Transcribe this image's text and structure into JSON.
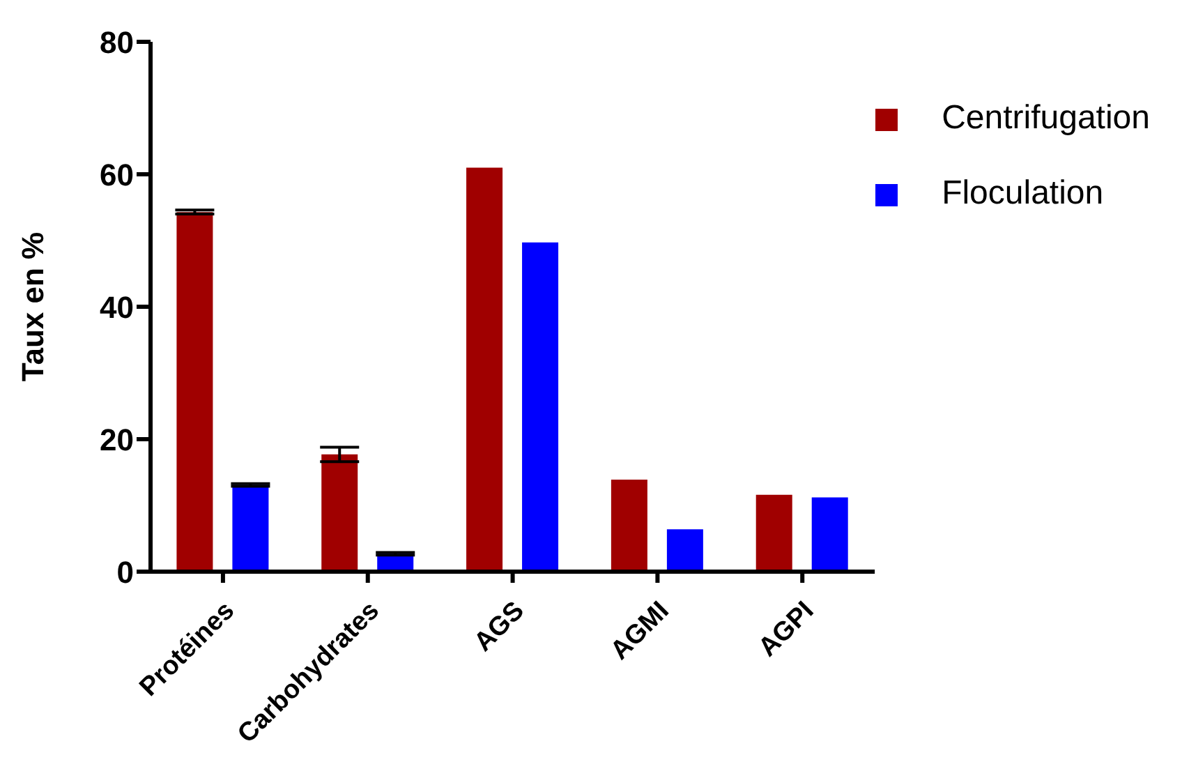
{
  "chart_data": {
    "type": "bar",
    "ylabel": "Taux en %",
    "categories": [
      "Protéines",
      "Carbohydrates",
      "AGS",
      "AGMI",
      "AGPI"
    ],
    "series": [
      {
        "name": "Centrifugation",
        "color": "#a00000",
        "values": [
          54.3,
          17.7,
          61.0,
          13.9,
          11.6
        ],
        "errors": [
          0.3,
          1.1,
          null,
          null,
          null
        ]
      },
      {
        "name": "Floculation",
        "color": "#0000ff",
        "values": [
          13.1,
          2.7,
          49.7,
          6.4,
          11.2
        ],
        "errors": [
          0.2,
          0.2,
          null,
          null,
          null
        ]
      }
    ],
    "ylim": [
      0,
      80
    ],
    "yticks": [
      0,
      20,
      40,
      60,
      80
    ],
    "grid": false,
    "legend": "top right"
  }
}
